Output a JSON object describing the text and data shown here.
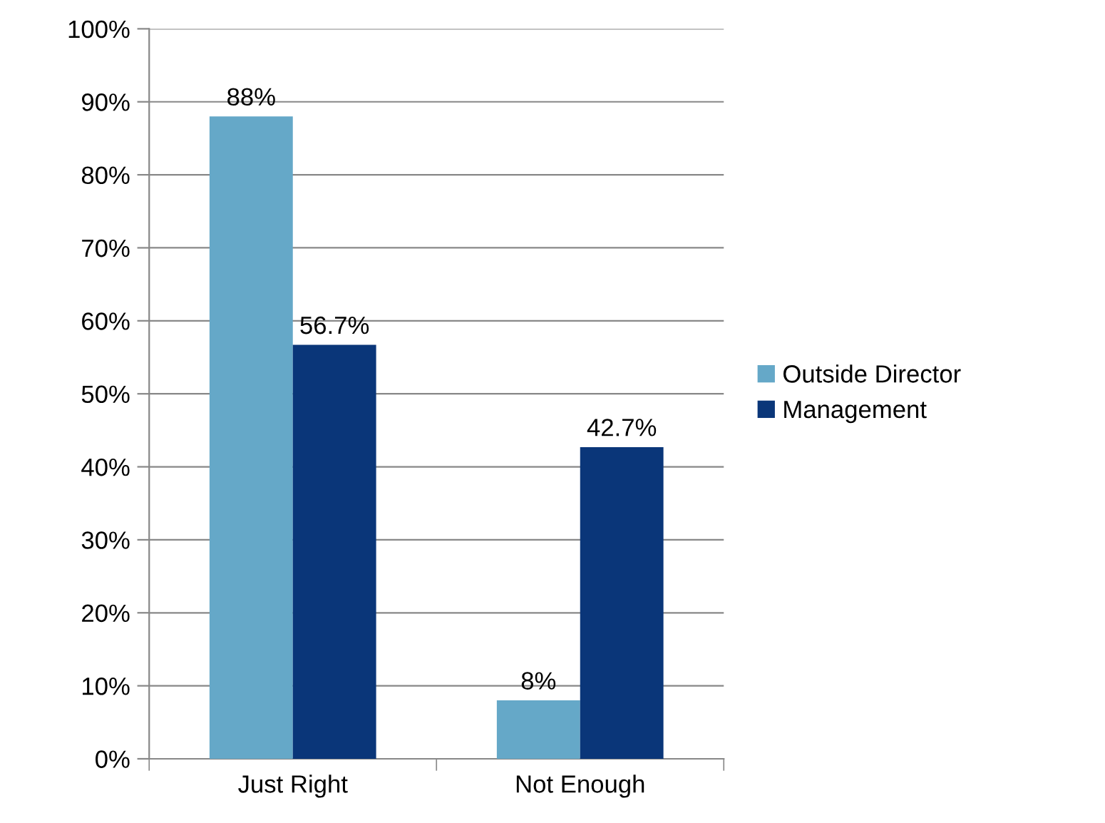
{
  "chart_data": {
    "type": "bar",
    "categories": [
      "Just Right",
      "Not Enough"
    ],
    "series": [
      {
        "name": "Outside Director",
        "color": "#65a8c8",
        "values": [
          88,
          8
        ],
        "value_labels": [
          "88%",
          "8%"
        ]
      },
      {
        "name": "Management",
        "color": "#0a3679",
        "values": [
          56.7,
          42.7
        ],
        "value_labels": [
          "56.7%",
          "42.7%"
        ]
      }
    ],
    "ylim": [
      0,
      100
    ],
    "yticks": [
      {
        "value": 0,
        "label": "0%"
      },
      {
        "value": 10,
        "label": "10%"
      },
      {
        "value": 20,
        "label": "20%"
      },
      {
        "value": 30,
        "label": "30%"
      },
      {
        "value": 40,
        "label": "40%"
      },
      {
        "value": 50,
        "label": "50%"
      },
      {
        "value": 60,
        "label": "60%"
      },
      {
        "value": 70,
        "label": "70%"
      },
      {
        "value": 80,
        "label": "80%"
      },
      {
        "value": 90,
        "label": "90%"
      },
      {
        "value": 100,
        "label": "100%"
      }
    ],
    "grid": "y",
    "legend": "right"
  }
}
